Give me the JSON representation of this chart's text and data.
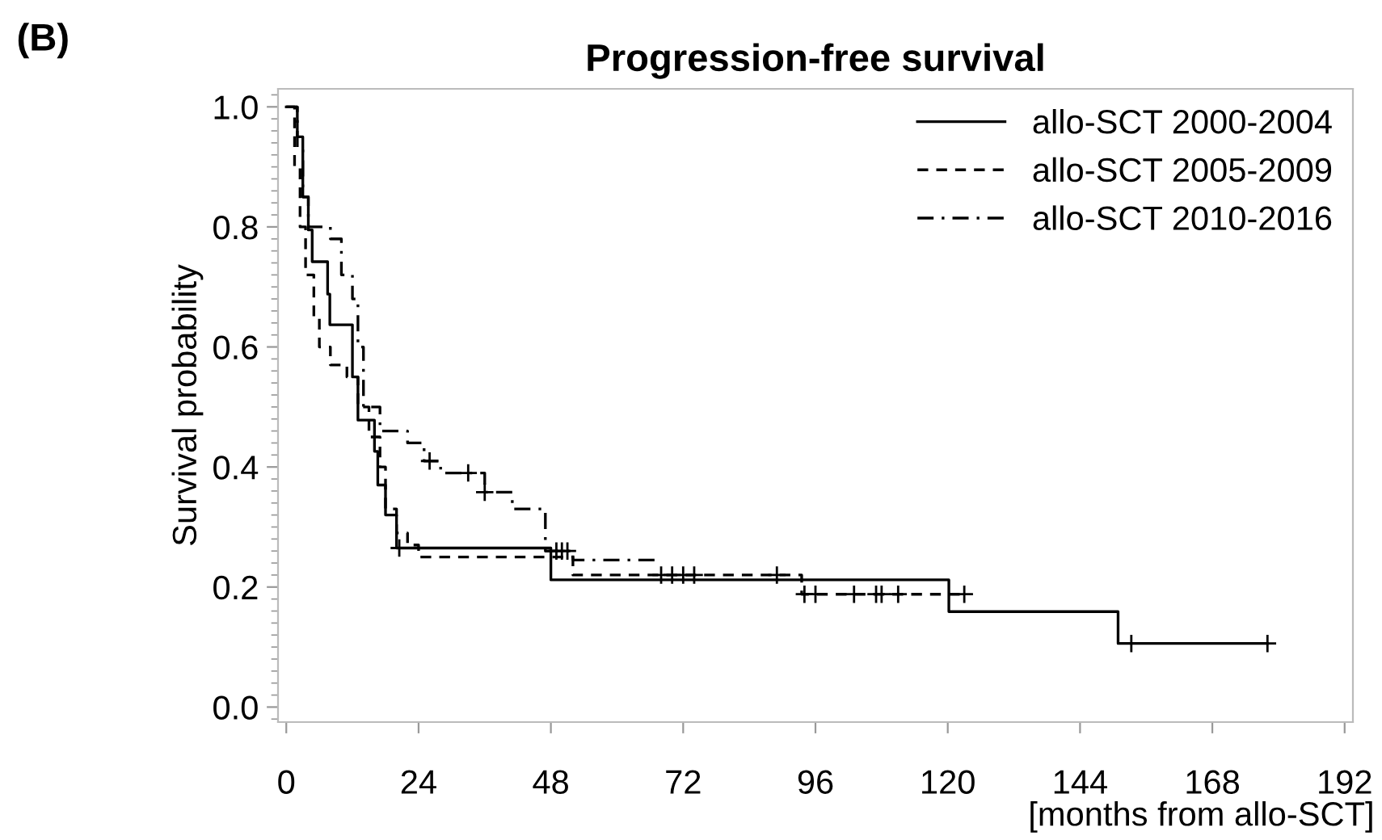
{
  "chart_data": {
    "type": "step",
    "title": "Progression-free survival",
    "ylabel": "Survival probability",
    "xlabel": "[months from allo-SCT]",
    "annotations": [
      "(B)"
    ],
    "xlim": [
      -1.5,
      193.5
    ],
    "xticks": [
      0,
      24,
      48,
      72,
      96,
      120,
      144,
      168,
      192
    ],
    "ylim": [
      -0.025,
      1.03
    ],
    "yticks": [
      {
        "value": 0,
        "label": "0.0"
      },
      {
        "value": 0.2,
        "label": "0.2"
      },
      {
        "value": 0.4,
        "label": "0.4"
      },
      {
        "value": 0.6,
        "label": "0.6"
      },
      {
        "value": 0.8,
        "label": "0.8"
      },
      {
        "value": 1,
        "label": "1.0"
      }
    ],
    "grid": false,
    "legend": "top right",
    "series": [
      {
        "name": "allo-SCT 2000-2004",
        "line_style": "solid",
        "color": "#000000",
        "x": [
          0,
          2,
          3,
          4,
          4.7,
          7.5,
          7.9,
          12,
          13,
          16,
          16.6,
          18,
          20,
          48,
          120.2,
          150.9,
          178
        ],
        "values": [
          1,
          0.95,
          0.85,
          0.795,
          0.742,
          0.688,
          0.637,
          0.55,
          0.478,
          0.426,
          0.37,
          0.32,
          0.265,
          0.212,
          0.159,
          0.106,
          0.106
        ]
      },
      {
        "name": "allo-SCT 2005-2009",
        "line_style": "dashed",
        "color": "#000000",
        "x": [
          0,
          1.5,
          2.5,
          3.5,
          5,
          6,
          8,
          11,
          13,
          15,
          17,
          18,
          20,
          22,
          24,
          48,
          52,
          93.5,
          123
        ],
        "values": [
          1,
          0.9,
          0.8,
          0.72,
          0.65,
          0.6,
          0.57,
          0.55,
          0.5,
          0.45,
          0.4,
          0.33,
          0.29,
          0.27,
          0.25,
          0.25,
          0.22,
          0.188,
          0.188
        ]
      },
      {
        "name": "allo-SCT 2010-2016",
        "line_style": "dashdot",
        "color": "#000000",
        "x": [
          0,
          2,
          3,
          4,
          8,
          10,
          12,
          13,
          14,
          17,
          22,
          25,
          28,
          36,
          41,
          47,
          52,
          67
        ],
        "values": [
          1,
          0.93,
          0.85,
          0.8,
          0.78,
          0.72,
          0.68,
          0.6,
          0.5,
          0.46,
          0.44,
          0.41,
          0.39,
          0.358,
          0.33,
          0.26,
          0.245,
          0.245
        ]
      },
      {
        "type": "scatter",
        "marker": "cross",
        "color": "#000000",
        "x": [
          20.5,
          153.3,
          178
        ],
        "values": [
          0.265,
          0.106,
          0.106
        ]
      },
      {
        "type": "scatter",
        "marker": "cross",
        "color": "#000000",
        "x": [
          68,
          70,
          72,
          74,
          89,
          94,
          96,
          103,
          107,
          108,
          111,
          123
        ],
        "values": [
          0.22,
          0.22,
          0.22,
          0.22,
          0.22,
          0.188,
          0.188,
          0.188,
          0.188,
          0.188,
          0.188,
          0.188
        ]
      },
      {
        "type": "scatter",
        "marker": "cross",
        "color": "#000000",
        "x": [
          26,
          33,
          36,
          49,
          50,
          51
        ],
        "values": [
          0.41,
          0.39,
          0.358,
          0.26,
          0.26,
          0.26
        ]
      }
    ]
  }
}
